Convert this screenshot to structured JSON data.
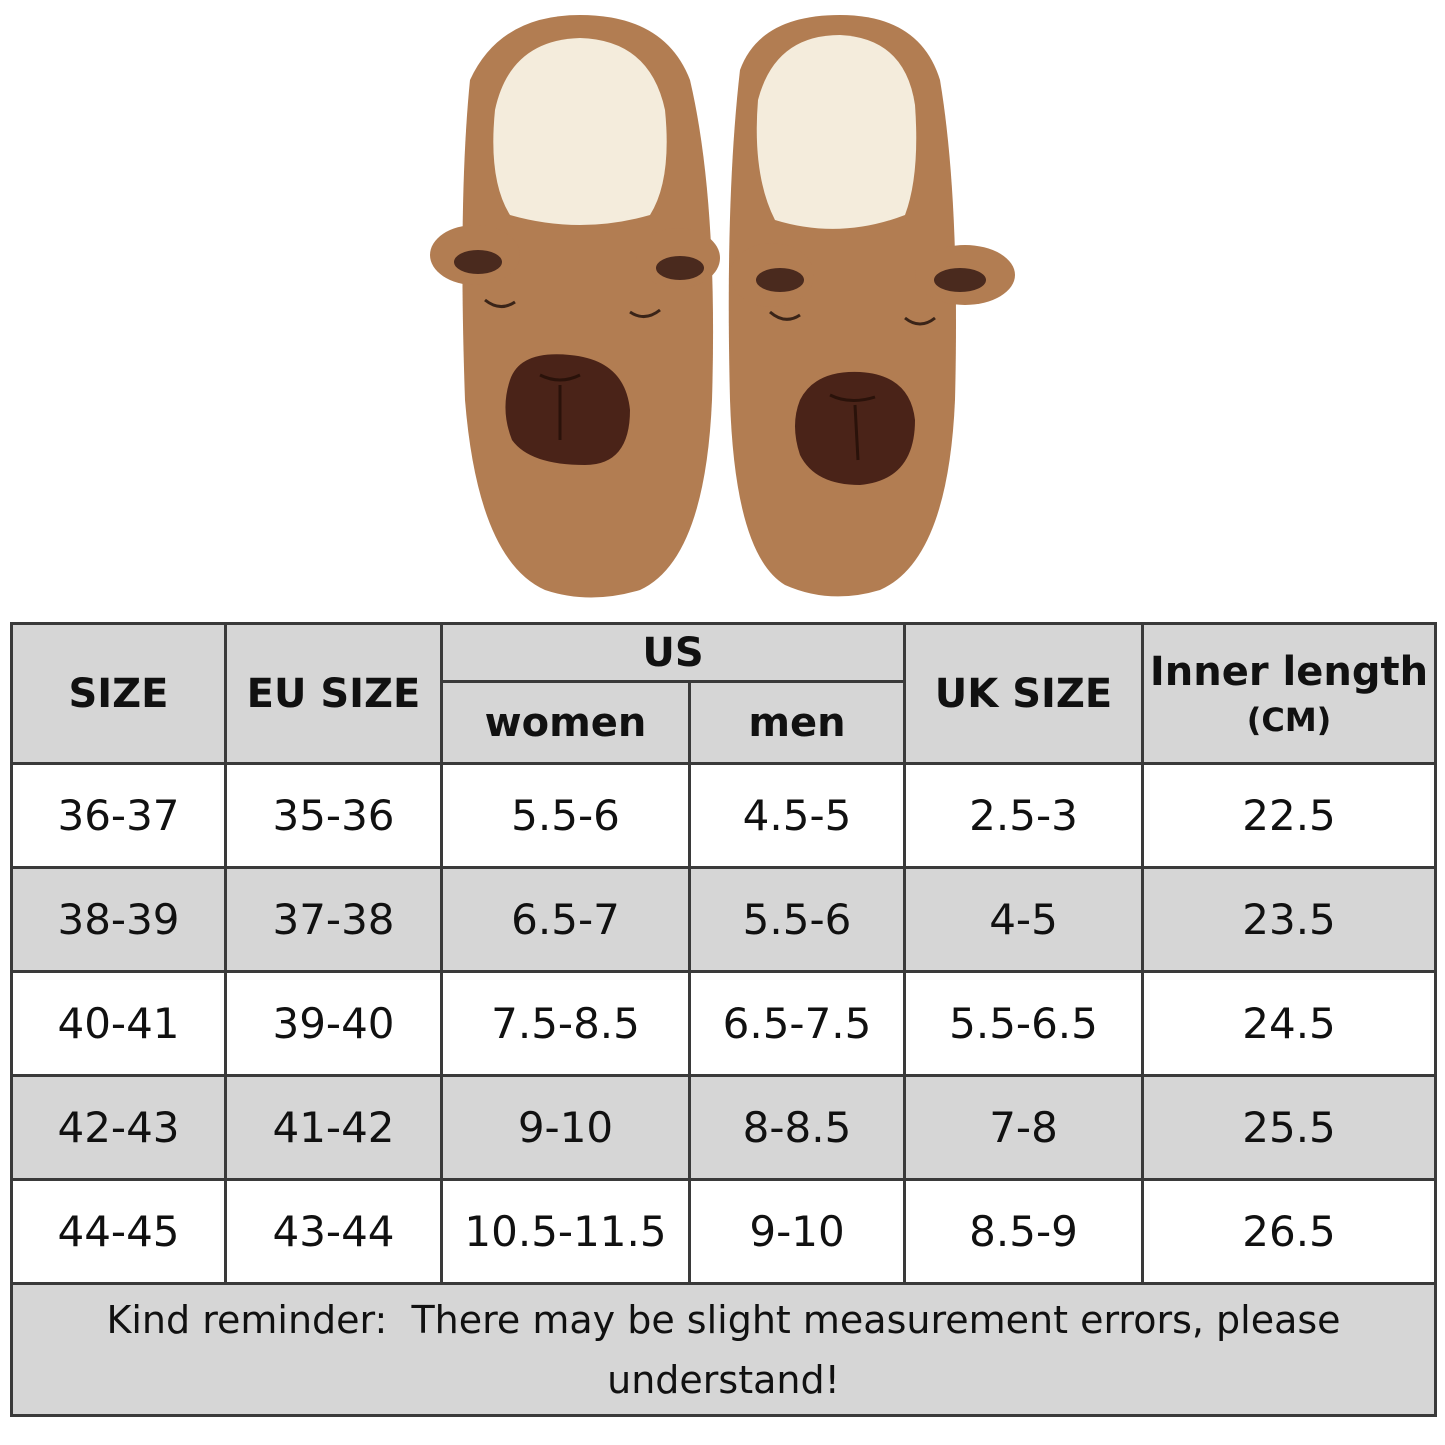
{
  "table": {
    "headers": {
      "size": "SIZE",
      "eu_size": "EU SIZE",
      "us": "US",
      "us_women": "women",
      "us_men": "men",
      "uk_size": "UK SIZE",
      "inner_length": "Inner length",
      "inner_length_unit": "(CM)"
    },
    "rows": [
      [
        "36-37",
        "35-36",
        "5.5-6",
        "4.5-5",
        "2.5-3",
        "22.5"
      ],
      [
        "38-39",
        "37-38",
        "6.5-7",
        "5.5-6",
        "4-5",
        "23.5"
      ],
      [
        "40-41",
        "39-40",
        "7.5-8.5",
        "6.5-7.5",
        "5.5-6.5",
        "24.5"
      ],
      [
        "42-43",
        "41-42",
        "9-10",
        "8-8.5",
        "7-8",
        "25.5"
      ],
      [
        "44-45",
        "43-44",
        "10.5-11.5",
        "9-10",
        "8.5-9",
        "26.5"
      ]
    ],
    "note": "Kind reminder:  There may be slight measurement errors, please understand!"
  }
}
